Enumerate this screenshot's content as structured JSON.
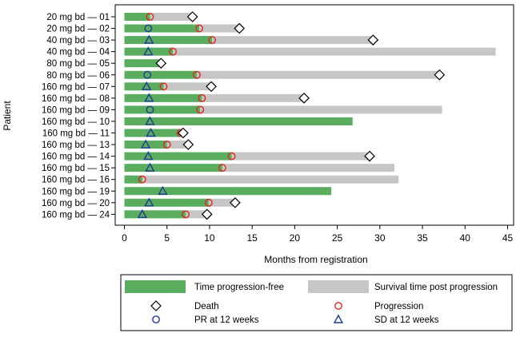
{
  "chart_data": {
    "type": "bar",
    "ylabel": "Patient",
    "xlabel": "Months from registration",
    "xlim": [
      0,
      45
    ],
    "x_ticks": [
      0,
      5,
      10,
      15,
      20,
      25,
      30,
      35,
      40,
      45
    ],
    "colors": {
      "progression_free": "#5aac5e",
      "survival_post": "#c6c6c6",
      "progression_marker": "#e0241f",
      "pr_marker": "#1f3a93",
      "sd_marker": "#1f3a93",
      "death_marker": "#000000"
    },
    "patients": [
      {
        "label": "20 mg bd — 01",
        "pfs": 3.0,
        "os": 8.0,
        "death": 8.0,
        "progression": 3.0,
        "response": null,
        "response_time": null
      },
      {
        "label": "20 mg bd — 02",
        "pfs": 8.8,
        "os": 13.5,
        "death": 13.5,
        "progression": 8.8,
        "response": "PR",
        "response_time": 2.8
      },
      {
        "label": "40 mg bd — 03",
        "pfs": 10.3,
        "os": 29.2,
        "death": 29.2,
        "progression": 10.3,
        "response": "SD",
        "response_time": 2.9
      },
      {
        "label": "40 mg bd — 04",
        "pfs": 5.7,
        "os": 43.6,
        "death": null,
        "progression": 5.7,
        "response": "SD",
        "response_time": 2.8
      },
      {
        "label": "80 mg bd — 05",
        "pfs": 4.3,
        "os": 4.3,
        "death": 4.3,
        "progression": null,
        "response": null,
        "response_time": null
      },
      {
        "label": "80 mg bd — 06",
        "pfs": 8.5,
        "os": 37.0,
        "death": 37.0,
        "progression": 8.5,
        "response": "PR",
        "response_time": 2.7
      },
      {
        "label": "160 mg bd — 07",
        "pfs": 4.6,
        "os": 10.2,
        "death": 10.2,
        "progression": 4.6,
        "response": "SD",
        "response_time": 2.6
      },
      {
        "label": "160 mg bd — 08",
        "pfs": 9.1,
        "os": 21.1,
        "death": 21.1,
        "progression": 9.1,
        "response": "SD",
        "response_time": 2.9
      },
      {
        "label": "160 mg bd — 09",
        "pfs": 8.9,
        "os": 37.3,
        "death": null,
        "progression": 8.9,
        "response": "PR",
        "response_time": 3.0
      },
      {
        "label": "160 mg bd — 10",
        "pfs": 26.8,
        "os": 26.8,
        "death": null,
        "progression": null,
        "response": "SD",
        "response_time": 3.0
      },
      {
        "label": "160 mg bd — 11",
        "pfs": 6.6,
        "os": 6.9,
        "death": 6.9,
        "progression": 6.6,
        "response": "SD",
        "response_time": 3.1
      },
      {
        "label": "160 mg bd — 13",
        "pfs": 5.0,
        "os": 7.5,
        "death": 7.5,
        "progression": 5.0,
        "response": "SD",
        "response_time": 2.5
      },
      {
        "label": "160 mg bd — 14",
        "pfs": 12.6,
        "os": 28.8,
        "death": 28.8,
        "progression": 12.6,
        "response": "SD",
        "response_time": 2.8
      },
      {
        "label": "160 mg bd — 15",
        "pfs": 11.5,
        "os": 31.7,
        "death": null,
        "progression": 11.5,
        "response": "SD",
        "response_time": 3.0
      },
      {
        "label": "160 mg bd — 16",
        "pfs": 2.1,
        "os": 32.2,
        "death": null,
        "progression": 2.1,
        "response": null,
        "response_time": null
      },
      {
        "label": "160 mg bd — 19",
        "pfs": 24.3,
        "os": 24.3,
        "death": null,
        "progression": null,
        "response": "SD",
        "response_time": 4.5
      },
      {
        "label": "160 mg bd — 20",
        "pfs": 9.9,
        "os": 13.0,
        "death": 13.0,
        "progression": 9.9,
        "response": "SD",
        "response_time": 2.9
      },
      {
        "label": "160 mg bd — 24",
        "pfs": 7.2,
        "os": 9.7,
        "death": 9.7,
        "progression": 7.2,
        "response": "SD",
        "response_time": 2.1
      }
    ],
    "legend": {
      "placement": "bottom",
      "items": [
        {
          "key": "progression_free",
          "label": "Time progression-free"
        },
        {
          "key": "survival_post",
          "label": "Survival time post progression"
        },
        {
          "key": "death",
          "label": "Death"
        },
        {
          "key": "progression",
          "label": "Progression"
        },
        {
          "key": "pr",
          "label": "PR at 12 weeks"
        },
        {
          "key": "sd",
          "label": "SD at 12 weeks"
        }
      ]
    }
  }
}
